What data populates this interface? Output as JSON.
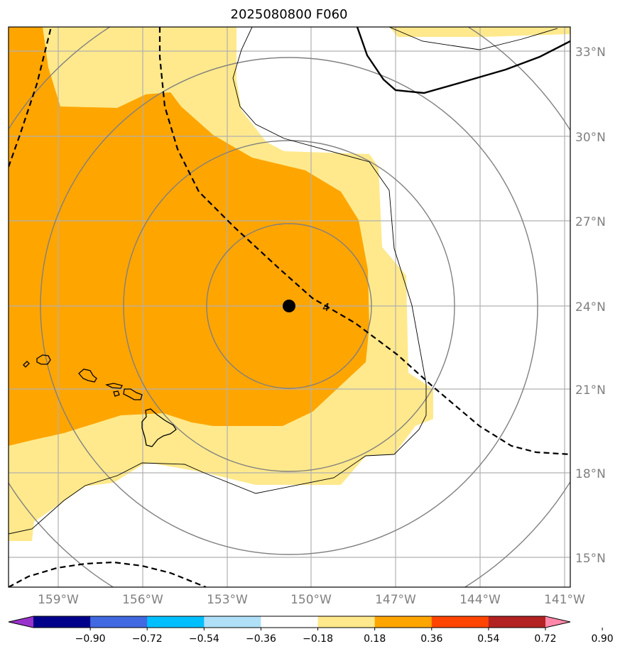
{
  "title": "2025080800 F060",
  "map": {
    "lat_labels": [
      "33°N",
      "30°N",
      "27°N",
      "24°N",
      "21°N",
      "18°N",
      "15°N"
    ],
    "lon_labels": [
      "159°W",
      "156°W",
      "153°W",
      "150°W",
      "147°W",
      "144°W",
      "141°W"
    ],
    "contour_label": "4",
    "colors": {
      "fill_light": "#ffe98c",
      "fill_orange": "#ffa500",
      "grid": "#b0b0b0",
      "range_rings": "#808080",
      "coast": "#000000"
    }
  },
  "colorbar": {
    "colors": [
      "#9932cc",
      "#00008b",
      "#4169e1",
      "#00bfff",
      "#b0e0f8",
      "#ffffff",
      "#ffe98c",
      "#ffa500",
      "#ff4500",
      "#b22222",
      "#ff88aa"
    ],
    "labels": [
      "−0.90",
      "−0.72",
      "−0.54",
      "−0.36",
      "−0.18",
      "0.18",
      "0.36",
      "0.54",
      "0.72",
      "0.90"
    ]
  }
}
